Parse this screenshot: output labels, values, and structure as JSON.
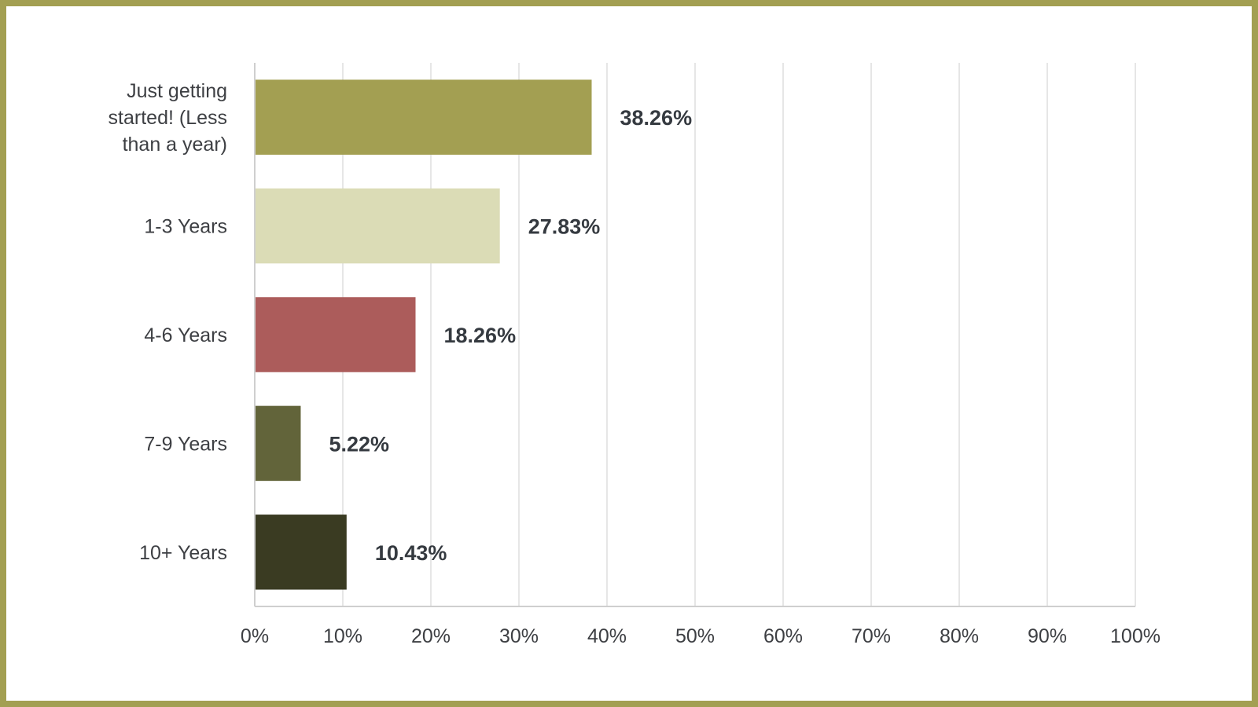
{
  "chart_data": {
    "type": "bar",
    "orientation": "horizontal",
    "title": "",
    "xlabel": "",
    "ylabel": "",
    "categories": [
      [
        "Just getting",
        "started! (Less",
        "than a year)"
      ],
      [
        "1-3 Years"
      ],
      [
        "4-6 Years"
      ],
      [
        "7-9 Years"
      ],
      [
        "10+ Years"
      ]
    ],
    "values": [
      38.26,
      27.83,
      18.26,
      5.22,
      10.43
    ],
    "value_labels": [
      "38.26%",
      "27.83%",
      "18.26%",
      "5.22%",
      "10.43%"
    ],
    "colors": [
      "#a39f52",
      "#dbdcb6",
      "#ac5c5b",
      "#62643a",
      "#3a3b22"
    ],
    "xlim": [
      0,
      100
    ],
    "xticks": [
      0,
      10,
      20,
      30,
      40,
      50,
      60,
      70,
      80,
      90,
      100
    ],
    "xtick_labels": [
      "0%",
      "10%",
      "20%",
      "30%",
      "40%",
      "50%",
      "60%",
      "70%",
      "80%",
      "90%",
      "100%"
    ],
    "grid": "vertical",
    "legend": "none"
  }
}
